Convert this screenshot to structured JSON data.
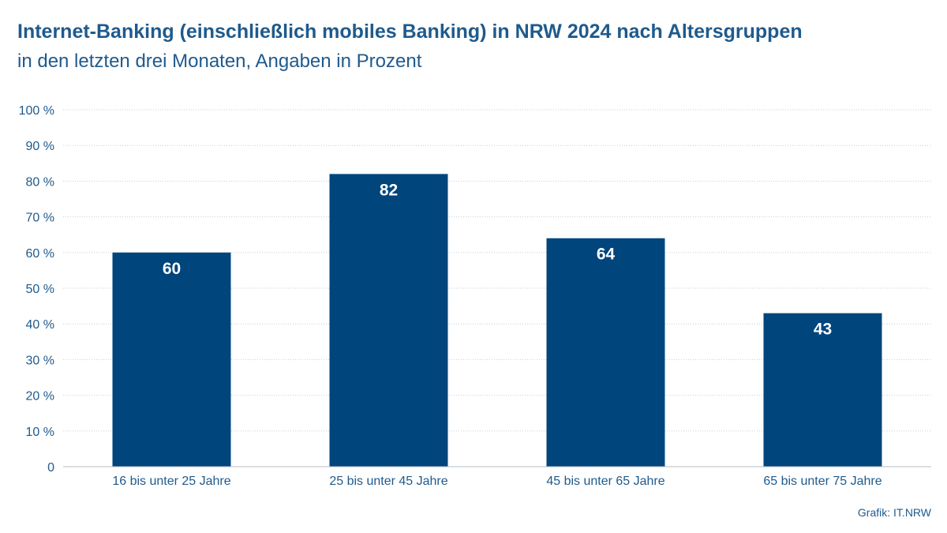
{
  "chart_data": {
    "type": "bar",
    "title": "Internet-Banking (einschließlich mobiles Banking) in NRW 2024 nach Altersgruppen",
    "subtitle": "in den letzten drei Monaten, Angaben in Prozent",
    "categories": [
      "16 bis unter 25 Jahre",
      "25 bis unter 45 Jahre",
      "45 bis unter 65 Jahre",
      "65 bis unter 75 Jahre"
    ],
    "values": [
      60,
      82,
      64,
      43
    ],
    "value_labels": [
      "60",
      "82",
      "64",
      "43"
    ],
    "ylim": [
      0,
      100
    ],
    "ytick_labels": [
      "0",
      "10 %",
      "20 %",
      "30 %",
      "40 %",
      "50 %",
      "60 %",
      "70 %",
      "80 %",
      "90 %",
      "100 %"
    ],
    "xlabel": "",
    "ylabel": "",
    "grid": true,
    "bar_color": "#00457c"
  },
  "source": "Grafik: IT.NRW"
}
